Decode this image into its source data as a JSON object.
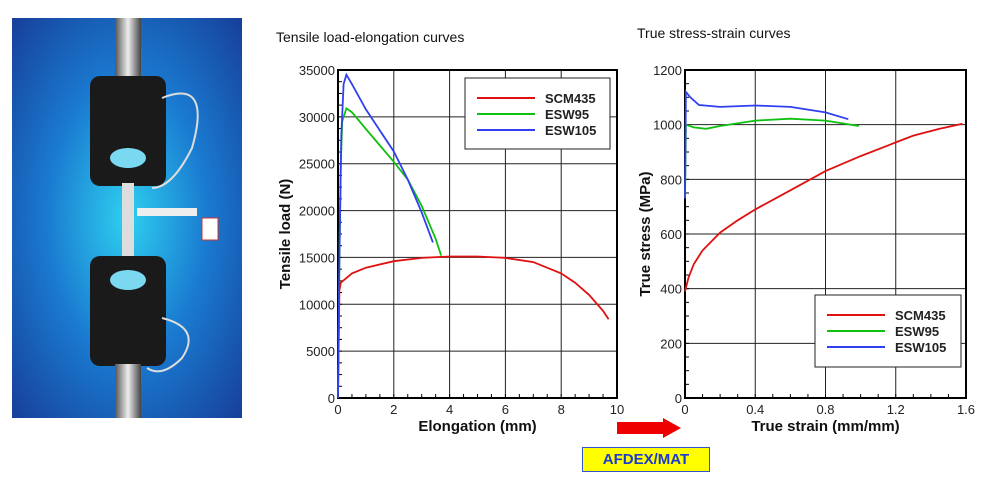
{
  "label": "AFDEX/MAT",
  "colors": {
    "SCM435": "#e01010",
    "ESW95": "#10c010",
    "ESW105": "#3040f0",
    "arrow": "#ee0000"
  },
  "chart_data": [
    {
      "type": "line",
      "title": "Tensile load-elongation curves",
      "xlabel": "Elongation (mm)",
      "ylabel": "Tensile load (N)",
      "xlim": [
        0,
        10
      ],
      "ylim": [
        0,
        35000
      ],
      "xticks": [
        0,
        2,
        4,
        6,
        8,
        10
      ],
      "yticks": [
        0,
        5000,
        10000,
        15000,
        20000,
        25000,
        30000,
        35000
      ],
      "grid": true,
      "legend": "top-right",
      "series": [
        {
          "name": "SCM435",
          "x": [
            0,
            0.02,
            0.05,
            0.1,
            0.5,
            1,
            2,
            3,
            4,
            5,
            6,
            7,
            8,
            8.5,
            9,
            9.5,
            9.7
          ],
          "y": [
            0,
            5000,
            11500,
            12300,
            13300,
            13900,
            14600,
            14950,
            15100,
            15100,
            14950,
            14500,
            13300,
            12300,
            11000,
            9300,
            8400
          ]
        },
        {
          "name": "ESW95",
          "x": [
            0,
            0.05,
            0.1,
            0.15,
            0.3,
            0.5,
            1,
            2,
            2.5,
            3,
            3.5,
            3.7
          ],
          "y": [
            0,
            15000,
            25000,
            29500,
            30900,
            30500,
            28700,
            25200,
            23300,
            20500,
            17000,
            15200
          ]
        },
        {
          "name": "ESW105",
          "x": [
            0,
            0.05,
            0.12,
            0.2,
            0.3,
            0.5,
            1,
            2,
            2.5,
            3,
            3.4
          ],
          "y": [
            0,
            15000,
            28000,
            33500,
            34500,
            33500,
            30800,
            26300,
            23300,
            19800,
            16600
          ]
        }
      ]
    },
    {
      "type": "line",
      "title": "True stress-strain curves",
      "xlabel": "True strain (mm/mm)",
      "ylabel": "True stress (MPa)",
      "xlim": [
        0,
        1.6
      ],
      "ylim": [
        0,
        1200
      ],
      "xticks": [
        0,
        0.4,
        0.8,
        1.2,
        1.6
      ],
      "yticks": [
        0,
        200,
        400,
        600,
        800,
        1000,
        1200
      ],
      "grid": true,
      "legend": "bottom-right",
      "series": [
        {
          "name": "SCM435",
          "x": [
            0,
            0.02,
            0.05,
            0.1,
            0.2,
            0.3,
            0.4,
            0.6,
            0.8,
            1.0,
            1.2,
            1.3,
            1.45,
            1.58
          ],
          "y": [
            390,
            440,
            490,
            540,
            605,
            650,
            690,
            760,
            830,
            885,
            935,
            960,
            985,
            1003
          ]
        },
        {
          "name": "ESW95",
          "x": [
            0,
            0.005,
            0.05,
            0.12,
            0.2,
            0.4,
            0.6,
            0.8,
            0.99
          ],
          "y": [
            730,
            1000,
            990,
            985,
            995,
            1015,
            1022,
            1015,
            995
          ]
        },
        {
          "name": "ESW105",
          "x": [
            0,
            0.005,
            0.03,
            0.08,
            0.2,
            0.4,
            0.6,
            0.8,
            0.93
          ],
          "y": [
            730,
            1120,
            1100,
            1072,
            1065,
            1070,
            1065,
            1045,
            1020
          ]
        }
      ]
    }
  ]
}
